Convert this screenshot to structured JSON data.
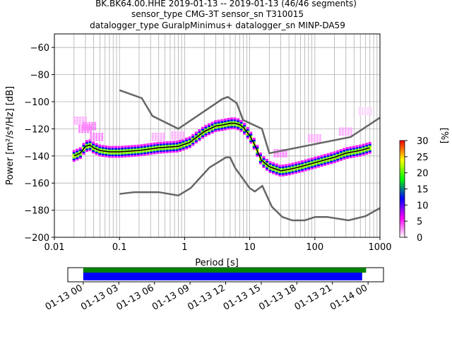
{
  "header": {
    "line1": "BK.BK64.00.HHE   2019-01-13 -- 2019-01-13  (46/46 segments)",
    "line2": "sensor_type CMG-3T sensor_sn T310015",
    "line3": "datalogger_type GuralpMinimus+ datalogger_sn MINP-DA59"
  },
  "chart_data": [
    {
      "type": "heatmap",
      "title": "BK.BK64.00.HHE   2019-01-13 -- 2019-01-13  (46/46 segments)",
      "xlabel": "Period [s]",
      "ylabel": "Power [m²/s⁴/Hz] [dB]",
      "x_scale": "log",
      "xlim": [
        0.01,
        1000
      ],
      "ylim": [
        -200,
        -50
      ],
      "x_ticks": [
        0.01,
        0.1,
        1,
        10,
        100,
        1000
      ],
      "x_tick_labels": [
        "0.01",
        "0.1",
        "1",
        "10",
        "100",
        "1000"
      ],
      "y_ticks": [
        -200,
        -180,
        -160,
        -140,
        -120,
        -100,
        -80,
        -60
      ],
      "y_tick_labels": [
        "−200",
        "−180",
        "−160",
        "−140",
        "−120",
        "−100",
        "−80",
        "−60"
      ],
      "grid": true,
      "colorbar": {
        "label": "[%]",
        "range": [
          0,
          30
        ],
        "ticks": [
          0,
          5,
          10,
          15,
          20,
          25,
          30
        ],
        "colors": [
          "#ffffff",
          "#ff00ff",
          "#0000ff",
          "#00ff00",
          "#ffff00",
          "#ff0000"
        ]
      },
      "series": [
        {
          "role": "mode",
          "color": "#000000",
          "x": [
            0.02,
            0.025,
            0.03,
            0.035,
            0.04,
            0.05,
            0.07,
            0.1,
            0.2,
            0.4,
            0.8,
            1.2,
            2,
            3,
            4,
            5,
            6,
            7,
            8,
            10,
            12,
            15,
            20,
            30,
            40,
            60,
            100,
            200,
            300,
            500,
            700
          ],
          "y": [
            -140,
            -138,
            -133,
            -132,
            -134,
            -136,
            -137,
            -137,
            -136,
            -134,
            -133,
            -130,
            -122,
            -118,
            -117,
            -116,
            -116,
            -117,
            -119,
            -125,
            -132,
            -143,
            -148,
            -151,
            -150,
            -148,
            -145,
            -141,
            -138,
            -136,
            -134
          ]
        },
        {
          "role": "high-noise-model",
          "color": "#666666",
          "x": [
            0.1,
            0.22,
            0.32,
            0.8,
            3.8,
            4.6,
            6.3,
            7.9,
            15.4,
            20,
            354.8,
            10000
          ],
          "y": [
            -91.5,
            -97.4,
            -110.5,
            -120,
            -98,
            -96.5,
            -101,
            -113.5,
            -120,
            -138,
            -126,
            -80.1
          ]
        },
        {
          "role": "low-noise-model",
          "color": "#666666",
          "x": [
            0.1,
            0.17,
            0.4,
            0.8,
            1.24,
            2.4,
            4.3,
            5,
            6,
            10,
            12,
            15.6,
            21.9,
            31.6,
            45,
            70,
            101,
            154,
            328,
            600,
            10000
          ],
          "y": [
            -168,
            -166.7,
            -166.7,
            -169.2,
            -163.7,
            -148.6,
            -141.1,
            -141.1,
            -149,
            -163.8,
            -166.2,
            -162.1,
            -177.5,
            -185,
            -187.5,
            -187.5,
            -185,
            -185,
            -187.5,
            -184.4,
            -151.5
          ]
        }
      ],
      "pdf_clusters": [
        {
          "x": 0.025,
          "y": -114,
          "pct": 2
        },
        {
          "x": 0.03,
          "y": -120,
          "pct": 3
        },
        {
          "x": 0.035,
          "y": -118,
          "pct": 3
        },
        {
          "x": 0.045,
          "y": -126,
          "pct": 3
        },
        {
          "x": 0.8,
          "y": -125,
          "pct": 2
        },
        {
          "x": 0.4,
          "y": -126,
          "pct": 2
        },
        {
          "x": 30,
          "y": -138,
          "pct": 3
        },
        {
          "x": 100,
          "y": -127,
          "pct": 2
        },
        {
          "x": 300,
          "y": -122,
          "pct": 2
        },
        {
          "x": 600,
          "y": -107,
          "pct": 1
        }
      ]
    },
    {
      "type": "bar",
      "title": "",
      "xlabel": "",
      "x_tick_labels": [
        "01-13 00",
        "01-13 03",
        "01-13 06",
        "01-13 09",
        "01-13 12",
        "01-13 15",
        "01-13 18",
        "01-13 21",
        "01-14 00"
      ],
      "xlim": [
        "2019-01-12 22:42",
        "2019-01-14 01:18"
      ],
      "series": [
        {
          "role": "data-coverage",
          "color": "#008000",
          "start": "2019-01-13 00:00",
          "end": "2019-01-13 23:50"
        },
        {
          "role": "psd-coverage",
          "color": "#0000ff",
          "start": "2019-01-13 00:00",
          "end": "2019-01-13 23:30"
        }
      ]
    }
  ]
}
